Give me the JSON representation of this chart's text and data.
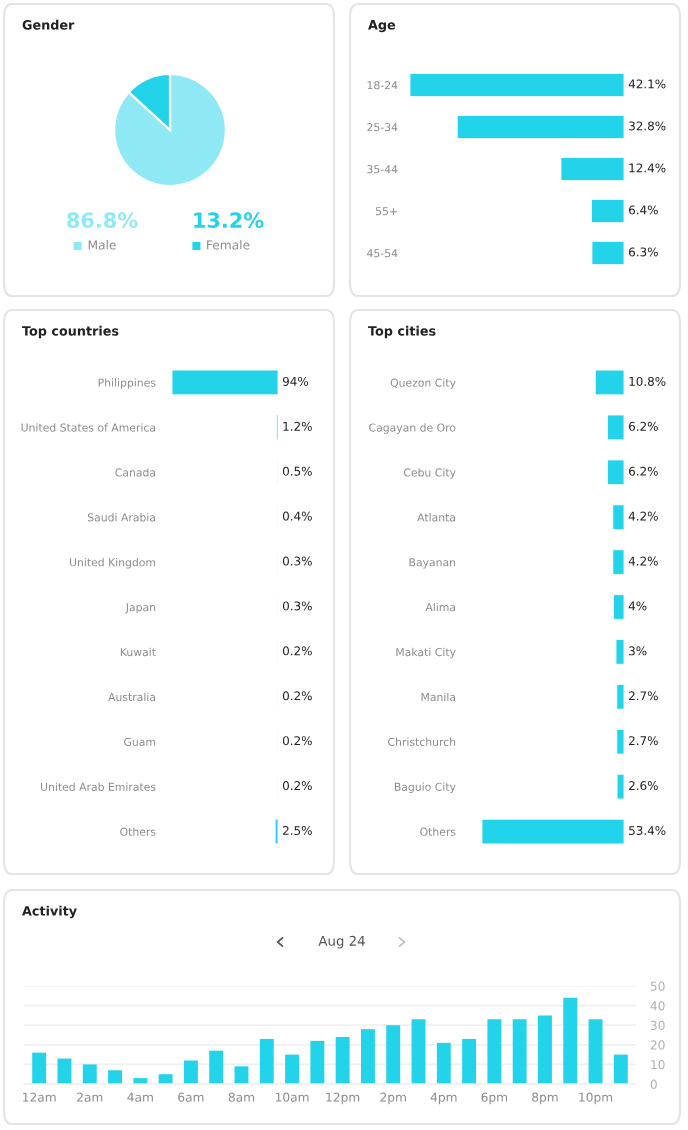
{
  "chart_data": [
    {
      "type": "pie",
      "title": "Gender",
      "categories": [
        "Male",
        "Female"
      ],
      "values": [
        86.8,
        13.2
      ],
      "colors": [
        "#8fe9f5",
        "#22d3ea"
      ],
      "value_labels": [
        "86.8%",
        "13.2%"
      ],
      "legend": "bottom"
    },
    {
      "type": "bar",
      "orientation": "horizontal",
      "title": "Age",
      "tick_labels": "y",
      "categories": [
        "18-24",
        "25-34",
        "35-44",
        "55+",
        "45-54"
      ],
      "values": [
        42.1,
        32.8,
        12.4,
        6.4,
        6.3
      ],
      "color": "#22d3ea",
      "value_labels": [
        "42.1%",
        "32.8%",
        "12.4%",
        "6.4%",
        "6.3%"
      ]
    },
    {
      "type": "bar",
      "orientation": "horizontal",
      "title": "Top countries",
      "tick_labels": "y",
      "categories": [
        "Philippines",
        "United States of America",
        "Canada",
        "Saudi Arabia",
        "United Kingdom",
        "Japan",
        "Kuwait",
        "Australia",
        "Guam",
        "United Arab Emirates",
        "Others"
      ],
      "values": [
        94,
        1.2,
        0.5,
        0.4,
        0.3,
        0.3,
        0.2,
        0.2,
        0.2,
        0.2,
        2.5
      ],
      "color": "#22d3ea",
      "value_labels": [
        "94%",
        "1.2%",
        "0.5%",
        "0.4%",
        "0.3%",
        "0.3%",
        "0.2%",
        "0.2%",
        "0.2%",
        "0.2%",
        "2.5%"
      ]
    },
    {
      "type": "bar",
      "orientation": "horizontal",
      "title": "Top cities",
      "tick_labels": "y",
      "categories": [
        "Quezon City",
        "Cagayan de Oro",
        "Cebu City",
        "Atlanta",
        "Bayanan",
        "Alima",
        "Makati City",
        "Manila",
        "Christchurch",
        "Baguio City",
        "Others"
      ],
      "values": [
        10.8,
        6.2,
        6.2,
        4.2,
        4.2,
        4,
        3,
        2.7,
        2.7,
        2.6,
        53.4
      ],
      "color": "#22d3ea",
      "value_labels": [
        "10.8%",
        "6.2%",
        "6.2%",
        "4.2%",
        "4.2%",
        "4%",
        "3%",
        "2.7%",
        "2.7%",
        "2.6%",
        "53.4%"
      ]
    },
    {
      "type": "bar",
      "title": "Activity",
      "subtitle": "Aug 24",
      "categories": [
        "12am",
        null,
        "2am",
        null,
        "4am",
        null,
        "6am",
        null,
        "8am",
        null,
        "10am",
        null,
        "12pm",
        null,
        "2pm",
        null,
        "4pm",
        null,
        "6pm",
        null,
        "8pm",
        null,
        "10pm",
        null
      ],
      "values": [
        16,
        13,
        10,
        7,
        3,
        5,
        12,
        17,
        9,
        23,
        15,
        22,
        24,
        28,
        30,
        33,
        21,
        23,
        33,
        33,
        35,
        44,
        33,
        15
      ],
      "color": "#22d3ea",
      "ylim": [
        0,
        50
      ],
      "yticks": [
        0,
        10,
        20,
        30,
        40,
        50
      ],
      "grid": "y"
    }
  ]
}
